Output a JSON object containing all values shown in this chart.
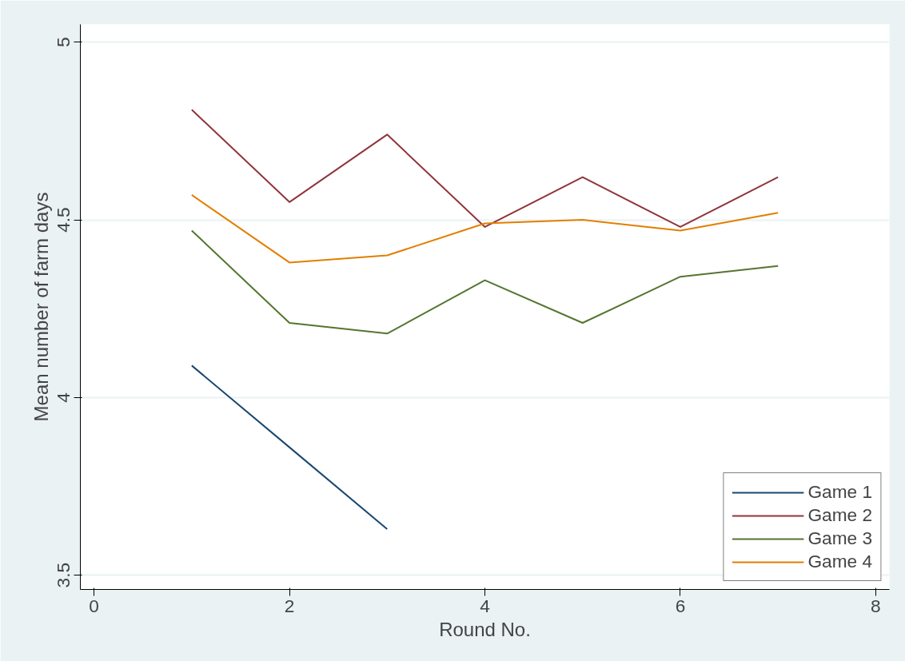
{
  "chart_data": {
    "type": "line",
    "xlabel": "Round No.",
    "ylabel": "Mean number of farm days",
    "x": [
      1,
      2,
      3,
      4,
      5,
      6,
      7
    ],
    "series": [
      {
        "name": "Game 1",
        "color": "#1a476f",
        "values": [
          4.09,
          3.86,
          3.63,
          null,
          null,
          null,
          null
        ]
      },
      {
        "name": "Game 2",
        "color": "#90353b",
        "values": [
          4.81,
          4.55,
          4.74,
          4.48,
          4.62,
          4.48,
          4.62
        ]
      },
      {
        "name": "Game 3",
        "color": "#55752f",
        "values": [
          4.47,
          4.21,
          4.18,
          4.33,
          4.21,
          4.34,
          4.37
        ]
      },
      {
        "name": "Game 4",
        "color": "#e37e00",
        "values": [
          4.57,
          4.38,
          4.4,
          4.49,
          4.5,
          4.47,
          4.52
        ]
      }
    ],
    "xlim": [
      -0.14,
      8.14
    ],
    "ylim": [
      3.46,
      5.05
    ],
    "xticks": [
      0,
      2,
      4,
      6,
      8
    ],
    "yticks": [
      3.5,
      4,
      4.5,
      5
    ],
    "grid": "y",
    "legend": "bottom right",
    "marker": "none",
    "line_style": "solid"
  }
}
